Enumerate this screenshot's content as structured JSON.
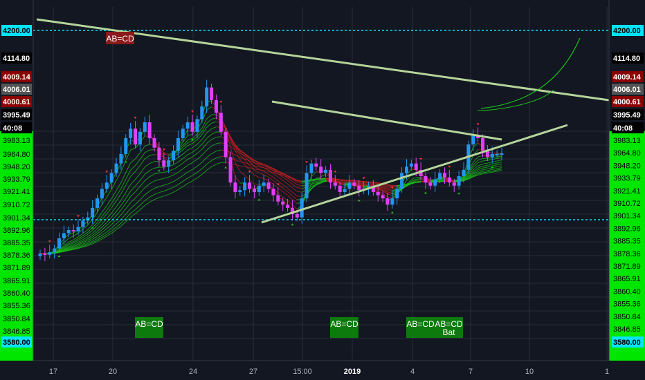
{
  "chart_data": {
    "type": "candlestick",
    "title": "",
    "xlabel": "",
    "ylabel": "",
    "x_ticks": [
      "17",
      "20",
      "24",
      "27",
      "15:00",
      "2019",
      "4",
      "7",
      "10",
      "1"
    ],
    "right_axis_ticks": [
      3983.13,
      3964.8,
      3948.2,
      3933.79,
      3921.41,
      3910.72,
      3901.34,
      3892.96,
      3885.35,
      3878.36,
      3871.89,
      3865.91,
      3860.4,
      3855.36,
      3850.84,
      3846.85
    ],
    "left_axis_ticks": [
      "4200.00",
      "4114.80",
      "4009.14",
      "4006.01",
      "4000.61",
      "3995.49",
      "40:08",
      "3983.13",
      "3964.80",
      "3948.20",
      "3933.79",
      "3921.41",
      "3910.72",
      "3901.34",
      "3892.96",
      "3885.35",
      "3878.36",
      "3871.89",
      "3865.91",
      "3860.40",
      "3855.36",
      "3850.84",
      "3846.85",
      "3580.00"
    ],
    "horizontal_levels": [
      4200.0,
      3901.34
    ],
    "price_labels": [
      {
        "text": "4200.00",
        "color": "#00e5ff"
      },
      {
        "text": "4114.80",
        "color": "#000000"
      },
      {
        "text": "4009.14",
        "color": "#8b0000"
      },
      {
        "text": "4006.01",
        "color": "#555555"
      },
      {
        "text": "4000.61",
        "color": "#8b0000"
      },
      {
        "text": "3995.49",
        "color": "#000000"
      },
      {
        "text": "40:08",
        "color": "#000000"
      },
      {
        "text": "3580.00",
        "color": "#00e5ff"
      }
    ],
    "pattern_labels": [
      {
        "text": "AB=CD",
        "fill": "#8b1a1a"
      },
      {
        "text": "AB=CD",
        "fill": "#0d7a0d"
      },
      {
        "text": "AB=CD",
        "fill": "#0d7a0d"
      },
      {
        "text": "AB=CD",
        "fill": "#0d7a0d"
      },
      {
        "text": "AB=CD",
        "fill": "#0d7a0d"
      },
      {
        "text": "Bat",
        "fill": "#0d7a0d"
      }
    ],
    "candles_close": [
      3848,
      3846,
      3850,
      3856,
      3872,
      3880,
      3885,
      3883,
      3890,
      3900,
      3905,
      3920,
      3935,
      3950,
      3960,
      3975,
      3990,
      4005,
      4030,
      4045,
      4020,
      4040,
      4055,
      4030,
      4015,
      3995,
      3985,
      3995,
      4010,
      4030,
      4045,
      4055,
      4040,
      4060,
      4080,
      4110,
      4090,
      4070,
      4040,
      4000,
      3960,
      3945,
      3948,
      3960,
      3950,
      3945,
      3955,
      3960,
      3950,
      3940,
      3930,
      3925,
      3920,
      3910,
      3905,
      3935,
      3975,
      3990,
      3985,
      3975,
      3980,
      3960,
      3955,
      3945,
      3950,
      3960,
      3955,
      3948,
      3950,
      3955,
      3945,
      3940,
      3935,
      3925,
      3935,
      3950,
      3975,
      3985,
      3990,
      3980,
      3970,
      3960,
      3955,
      3965,
      3975,
      3968,
      3960,
      3955,
      3970,
      3980,
      4020,
      4035,
      4030,
      4010,
      4000,
      4005,
      4005,
      4006
    ]
  },
  "colors": {
    "background": "#131722",
    "grid": "#2a2e39",
    "bull_candle": "#2196f3",
    "bear_candle": "#e040fb",
    "level_line": "#00e5ff",
    "trendline": "#b5d49a",
    "ribbon_green": "#19c119",
    "ribbon_red": "#c0201f",
    "right_axis_bg": "#00e600"
  },
  "icons": {
    "up_marker": "green-triangle-up-icon",
    "down_marker": "red-triangle-down-icon"
  }
}
